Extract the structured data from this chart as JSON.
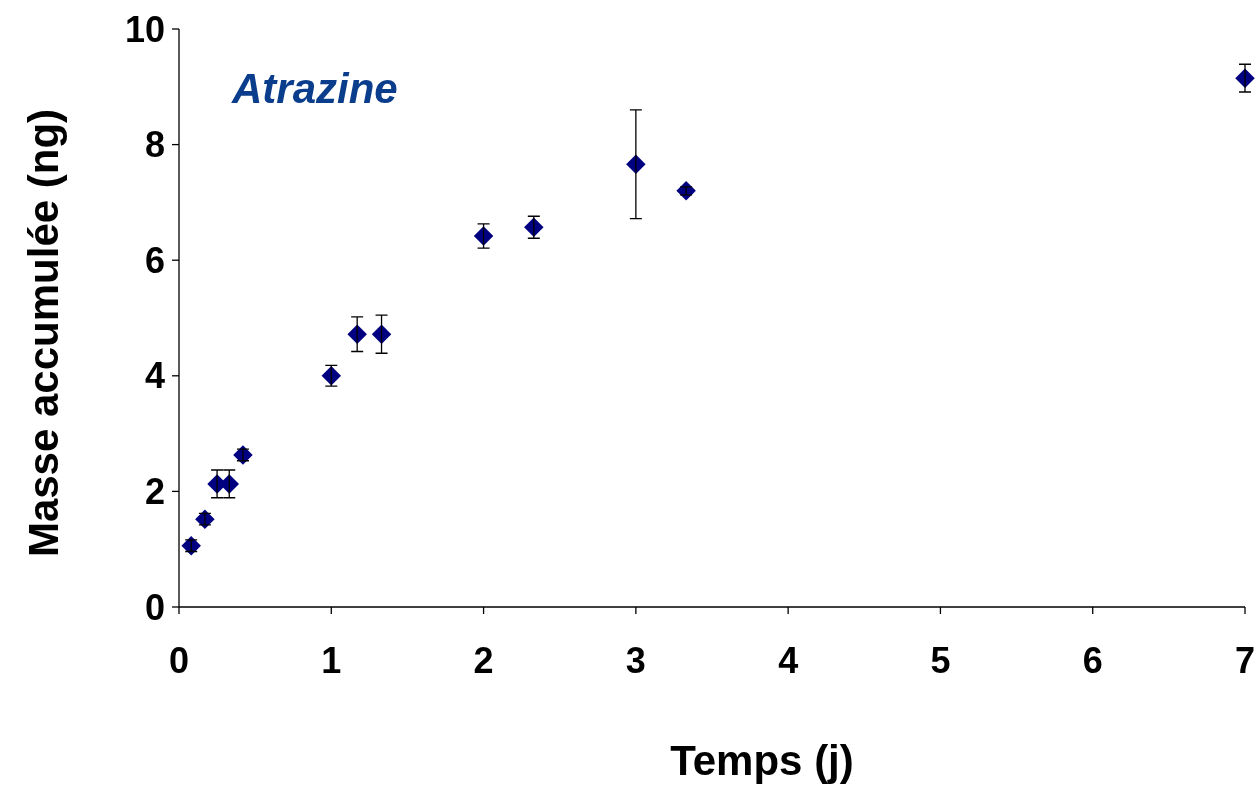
{
  "chart_data": {
    "type": "scatter",
    "title": "Atrazine",
    "xlabel": "Temps (j)",
    "ylabel": "Masse accumulée (ng)",
    "x": [
      0.08,
      0.17,
      0.25,
      0.33,
      0.42,
      1.0,
      1.17,
      1.33,
      2.0,
      2.33,
      3.0,
      3.33,
      7.0
    ],
    "series": [
      {
        "color": "#000080",
        "values": [
          1.06,
          1.52,
          2.13,
          2.13,
          2.63,
          4.0,
          4.72,
          4.72,
          6.42,
          6.57,
          7.66,
          7.2,
          9.15
        ],
        "errors": [
          0.1,
          0.1,
          0.24,
          0.24,
          0.1,
          0.18,
          0.3,
          0.33,
          0.21,
          0.19,
          0.94,
          0.07,
          0.24
        ]
      }
    ],
    "xlim": [
      0,
      7
    ],
    "xticks": [
      0,
      1,
      2,
      3,
      4,
      5,
      6,
      7
    ],
    "ylim": [
      0,
      10
    ],
    "yticks": [
      0,
      2,
      4,
      6,
      8,
      10
    ],
    "marker": "diamond",
    "grid": false
  }
}
